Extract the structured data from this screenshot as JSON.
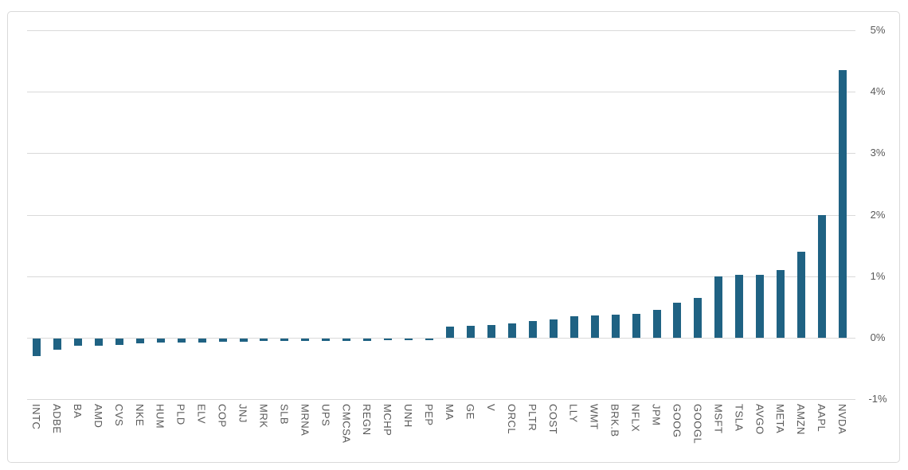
{
  "chart_data": {
    "type": "bar",
    "title": "",
    "xlabel": "",
    "ylabel": "",
    "unit": "%",
    "ylim": [
      -1,
      5
    ],
    "grid": true,
    "legend": false,
    "yaxis_position": "right",
    "categories": [
      "INTC",
      "ADBE",
      "BA",
      "AMD",
      "CVS",
      "NKE",
      "HUM",
      "PLD",
      "ELV",
      "COP",
      "JNJ",
      "MRK",
      "SLB",
      "MRNA",
      "UPS",
      "CMCSA",
      "REGN",
      "MCHP",
      "UNH",
      "PEP",
      "MA",
      "GE",
      "V",
      "ORCL",
      "PLTR",
      "COST",
      "LLY",
      "WMT",
      "BRK.B",
      "NFLX",
      "JPM",
      "GOOG",
      "GOOGL",
      "MSFT",
      "TSLA",
      "AVGO",
      "META",
      "AMZN",
      "AAPL",
      "NVDA"
    ],
    "values": [
      -0.28,
      -0.18,
      -0.12,
      -0.11,
      -0.1,
      -0.08,
      -0.07,
      -0.06,
      -0.06,
      -0.05,
      -0.05,
      -0.04,
      -0.04,
      -0.04,
      -0.04,
      -0.04,
      -0.04,
      -0.03,
      -0.03,
      -0.03,
      0.18,
      0.2,
      0.21,
      0.23,
      0.27,
      0.3,
      0.35,
      0.36,
      0.37,
      0.39,
      0.45,
      0.57,
      0.65,
      1.0,
      1.02,
      1.02,
      1.1,
      1.4,
      2.0,
      4.35
    ],
    "yticks": [
      {
        "label": "5%",
        "value": 5
      },
      {
        "label": "4%",
        "value": 4
      },
      {
        "label": "3%",
        "value": 3
      },
      {
        "label": "2%",
        "value": 2
      },
      {
        "label": "1%",
        "value": 1
      },
      {
        "label": "0%",
        "value": 0
      },
      {
        "label": "-1%",
        "value": -1
      }
    ],
    "colors": {
      "bar": "#1f6283",
      "gridline": "#d9d9d9",
      "axis_label": "#595959",
      "frame_border": "#d9d9d9",
      "background": "#ffffff"
    }
  }
}
